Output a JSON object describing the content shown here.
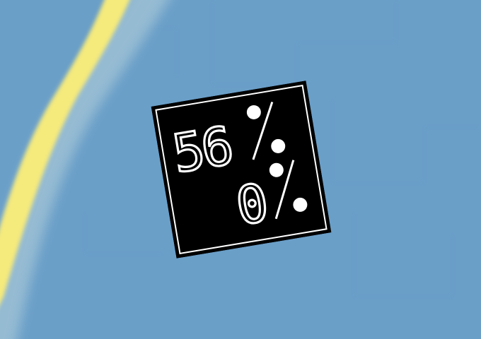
{
  "map": {
    "water_color": "#6a9fc8",
    "road_color": "#f5ea7c",
    "road_edge_color": "#a8c8d8"
  },
  "hud": {
    "background_color": "#000000",
    "border_color": "#ffffff",
    "digit_color": "#ffffff",
    "readouts": [
      {
        "value": "56",
        "unit": "%"
      },
      {
        "value": "0",
        "unit": "%"
      }
    ]
  }
}
